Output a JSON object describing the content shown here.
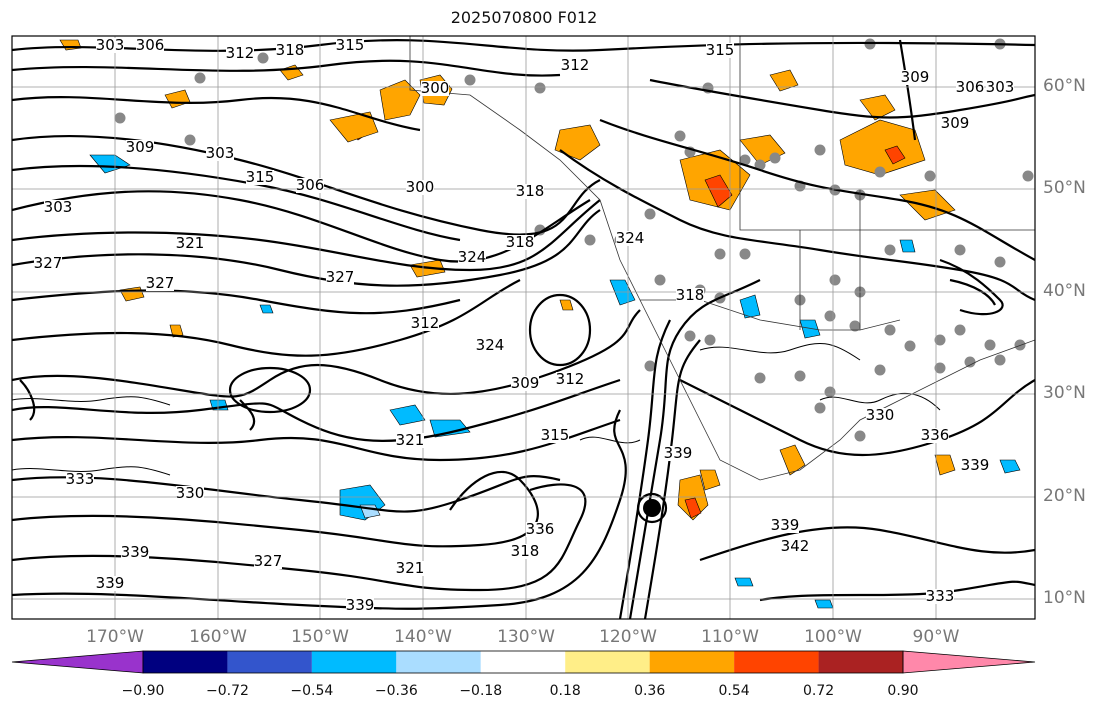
{
  "title": "2025070800 F012",
  "lat_labels": [
    "60°N",
    "50°N",
    "40°N",
    "30°N",
    "20°N",
    "10°N"
  ],
  "lon_labels": [
    "170°W",
    "160°W",
    "150°W",
    "140°W",
    "130°W",
    "120°W",
    "110°W",
    "100°W",
    "90°W"
  ],
  "colorbar": {
    "ticks": [
      "−0.90",
      "−0.72",
      "−0.54",
      "−0.36",
      "−0.18",
      "0.18",
      "0.36",
      "0.54",
      "0.72",
      "0.90"
    ],
    "colors": [
      "#9933cc",
      "#000080",
      "#3355cc",
      "#00bbff",
      "#aaddff",
      "#ffffff",
      "#ffee88",
      "#ffa500",
      "#ff4400",
      "#aa2222",
      "#ff88aa"
    ]
  },
  "contour_labels": [
    "303",
    "306",
    "312",
    "318",
    "315",
    "315",
    "312",
    "309",
    "306",
    "303",
    "300",
    "309",
    "303",
    "309",
    "315",
    "306",
    "300",
    "318",
    "303",
    "327",
    "321",
    "327",
    "327",
    "324",
    "318",
    "312",
    "324",
    "309",
    "312",
    "315",
    "321",
    "333",
    "330",
    "339",
    "339",
    "336",
    "318",
    "321",
    "327",
    "339",
    "339",
    "339",
    "342",
    "333",
    "330",
    "336",
    "339",
    "324",
    "318"
  ],
  "fill_colors": {
    "orange": "#ffa500",
    "light_orange": "#ffee88",
    "red": "#ff4400",
    "blue": "#00bbff",
    "light_blue": "#aaddff",
    "dot": "#888888"
  }
}
